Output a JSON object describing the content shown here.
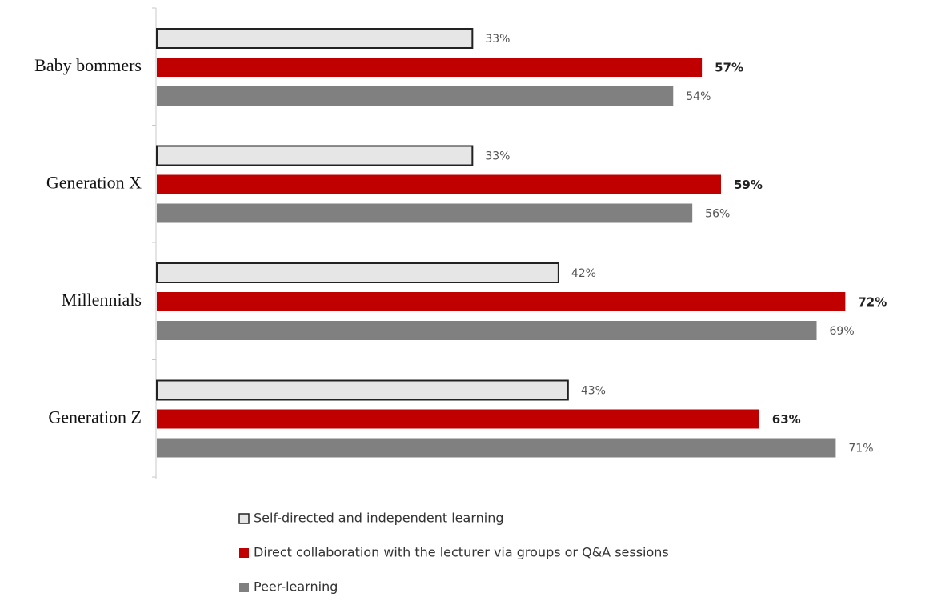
{
  "chart_data": {
    "type": "bar",
    "orientation": "horizontal",
    "categories": [
      "Baby bommers",
      "Generation X",
      "Millennials",
      "Generation Z"
    ],
    "series": [
      {
        "name": "Self-directed and independent learning",
        "values": [
          33,
          33,
          42,
          43
        ],
        "color": "#e6e6e6",
        "stroke": "#222222",
        "labels": [
          "33%",
          "33%",
          "42%",
          "43%"
        ],
        "label_bold": false
      },
      {
        "name": "Direct collaboration with the lecturer via groups or Q&A sessions",
        "values": [
          57,
          59,
          72,
          63
        ],
        "color": "#c00000",
        "stroke": "none",
        "labels": [
          "57%",
          "59%",
          "72%",
          "63%"
        ],
        "label_bold": true
      },
      {
        "name": "Peer-learning",
        "values": [
          54,
          56,
          69,
          71
        ],
        "color": "#808080",
        "stroke": "none",
        "labels": [
          "54%",
          "56%",
          "69%",
          "71%"
        ],
        "label_bold": false
      }
    ],
    "xlim": [
      0,
      79
    ],
    "unit": "%",
    "grid": false,
    "legend_position": "bottom",
    "title": "",
    "xlabel": "",
    "ylabel": ""
  }
}
